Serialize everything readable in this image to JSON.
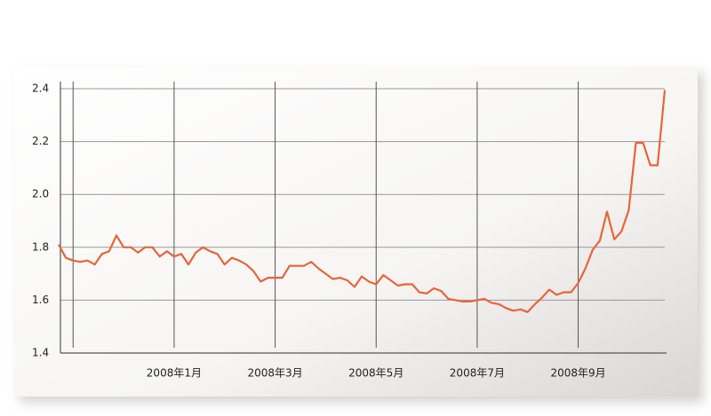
{
  "chart_data": {
    "type": "line",
    "categories": [
      null,
      null,
      null,
      null,
      null,
      null,
      null,
      null,
      null,
      null,
      null,
      null,
      null,
      null,
      null,
      null,
      "2008年1月",
      null,
      null,
      null,
      null,
      null,
      null,
      null,
      null,
      null,
      null,
      null,
      null,
      null,
      "2008年3月",
      null,
      null,
      null,
      null,
      null,
      null,
      null,
      null,
      null,
      null,
      null,
      null,
      null,
      "2008年5月",
      null,
      null,
      null,
      null,
      null,
      null,
      null,
      null,
      null,
      null,
      null,
      null,
      null,
      "2008年7月",
      null,
      null,
      null,
      null,
      null,
      null,
      null,
      null,
      null,
      null,
      null,
      null,
      null,
      "2008年9月",
      null,
      null,
      null,
      null,
      null,
      null,
      null,
      null,
      null,
      null,
      null,
      null
    ],
    "values": [
      1.81,
      1.76,
      1.75,
      1.745,
      1.75,
      1.735,
      1.775,
      1.785,
      1.845,
      1.8,
      1.8,
      1.78,
      1.8,
      1.8,
      1.765,
      1.785,
      1.765,
      1.775,
      1.735,
      1.78,
      1.8,
      1.785,
      1.775,
      1.735,
      1.76,
      1.75,
      1.735,
      1.71,
      1.67,
      1.685,
      1.685,
      1.685,
      1.73,
      1.73,
      1.73,
      1.745,
      1.72,
      1.7,
      1.68,
      1.685,
      1.675,
      1.65,
      1.69,
      1.67,
      1.66,
      1.695,
      1.675,
      1.655,
      1.66,
      1.66,
      1.63,
      1.625,
      1.645,
      1.635,
      1.605,
      1.6,
      1.595,
      1.595,
      1.6,
      1.605,
      1.59,
      1.585,
      1.57,
      1.56,
      1.565,
      1.555,
      1.585,
      1.61,
      1.64,
      1.62,
      1.63,
      1.63,
      1.665,
      1.72,
      1.79,
      1.825,
      1.935,
      1.83,
      1.86,
      1.94,
      2.195,
      2.195,
      2.11,
      2.11,
      2.395
    ],
    "color": "#e8643a",
    "ylim": [
      1.4,
      2.4
    ],
    "yticks": [
      1.4,
      1.6,
      1.8,
      {
        "value": 2,
        "label": "2.0"
      },
      2.2,
      2.4
    ],
    "grid": true
  }
}
